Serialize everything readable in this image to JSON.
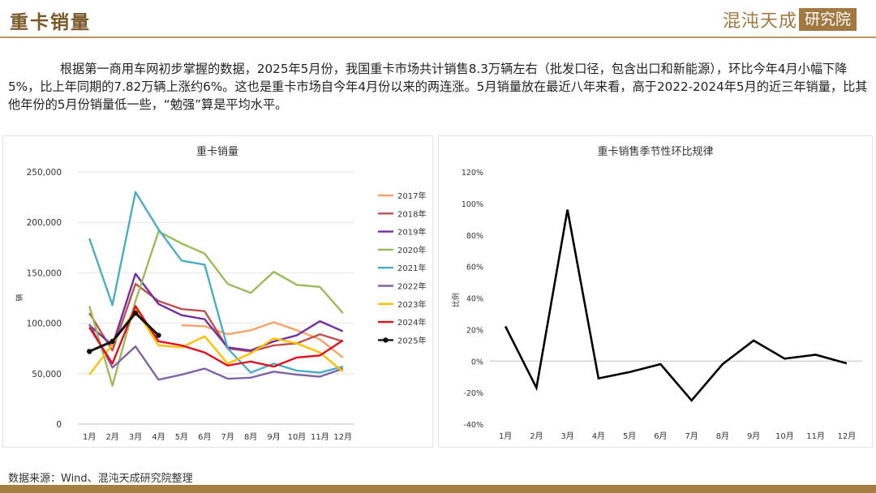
{
  "header": {
    "title": "重卡销量",
    "brand_text": "混沌天成",
    "brand_box": "研究院"
  },
  "paragraph": "根据第一商用车网初步掌握的数据，2025年5月份，我国重卡市场共计销售8.3万辆左右（批发口径，包含出口和新能源），环比今年4月小幅下降5%，比上年同期的7.82万辆上涨约6%。这也是重卡市场自今年4月份以来的两连涨。5月销量放在最近八年来看，高于2022-2024年5月的近三年销量，比其他年份的5月份销量低一些，“勉强”算是平均水平。",
  "source": "数据来源：Wind、混沌天成研究院整理",
  "chart_data": [
    {
      "type": "line",
      "title": "重卡销量",
      "ylabel": "辆",
      "xlabel": "",
      "categories": [
        "1月",
        "2月",
        "3月",
        "4月",
        "5月",
        "6月",
        "7月",
        "8月",
        "9月",
        "10月",
        "11月",
        "12月"
      ],
      "ylim": [
        0,
        250000
      ],
      "yticks": [
        "0",
        "50,000",
        "100,000",
        "150,000",
        "200,000",
        "250,000"
      ],
      "legend_position": "right",
      "series": [
        {
          "name": "2017年",
          "color": "#f4a46a",
          "values": [
            null,
            null,
            null,
            null,
            98000,
            97000,
            89000,
            93000,
            101000,
            93000,
            84000,
            66000
          ]
        },
        {
          "name": "2018年",
          "color": "#c0504d",
          "values": [
            110000,
            73000,
            139000,
            122000,
            114000,
            112000,
            75000,
            72000,
            78000,
            80000,
            89000,
            82000
          ]
        },
        {
          "name": "2019年",
          "color": "#7030a0",
          "values": [
            98000,
            78000,
            149000,
            119000,
            108000,
            104000,
            76000,
            73000,
            82000,
            88000,
            102000,
            92000
          ]
        },
        {
          "name": "2020年",
          "color": "#9bbb59",
          "values": [
            117000,
            38000,
            122000,
            191000,
            179000,
            169000,
            139000,
            130000,
            151000,
            138000,
            136000,
            110000
          ]
        },
        {
          "name": "2021年",
          "color": "#4bacc6",
          "values": [
            184000,
            118000,
            230000,
            193000,
            162000,
            158000,
            75000,
            51000,
            60000,
            53000,
            51000,
            57000
          ]
        },
        {
          "name": "2022年",
          "color": "#8064a2",
          "values": [
            99000,
            56000,
            77000,
            44000,
            49000,
            55000,
            45000,
            46000,
            52000,
            49000,
            47000,
            55000
          ]
        },
        {
          "name": "2023年",
          "color": "#ffc000",
          "values": [
            49000,
            79000,
            114000,
            78000,
            76000,
            87000,
            60000,
            70000,
            85000,
            80000,
            71000,
            52000
          ]
        },
        {
          "name": "2024年",
          "color": "#e0101f",
          "values": [
            96000,
            60000,
            117000,
            82000,
            78000,
            71000,
            58000,
            62000,
            57000,
            66000,
            68000,
            83000
          ]
        },
        {
          "name": "2025年",
          "color": "#111111",
          "values": [
            72000,
            82000,
            110000,
            88000,
            null,
            null,
            null,
            null,
            null,
            null,
            null,
            null
          ]
        }
      ]
    },
    {
      "type": "line",
      "title": "重卡销售季节性环比规律",
      "ylabel": "比例",
      "xlabel": "",
      "categories": [
        "1月",
        "2月",
        "3月",
        "4月",
        "5月",
        "6月",
        "7月",
        "8月",
        "9月",
        "10月",
        "11月",
        "12月"
      ],
      "ylim": [
        -40,
        120
      ],
      "yticks": [
        "-40%",
        "-20%",
        "0%",
        "20%",
        "40%",
        "60%",
        "80%",
        "100%",
        "120%"
      ],
      "series": [
        {
          "color": "#000000",
          "values": [
            22,
            -17,
            96,
            -11,
            -7,
            -2,
            -25,
            -2,
            13,
            1.5,
            4,
            -1.5
          ]
        }
      ]
    }
  ]
}
